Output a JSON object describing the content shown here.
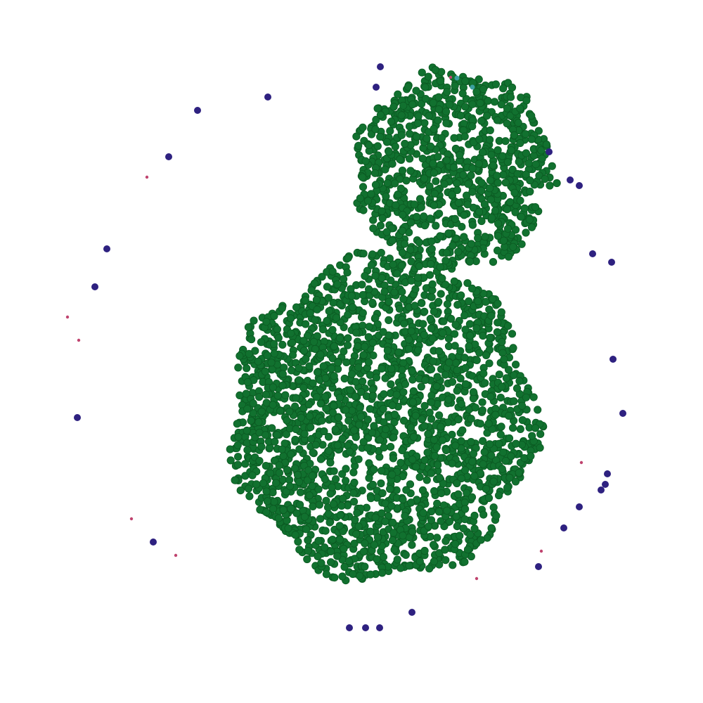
{
  "diagram": {
    "type": "network-graph",
    "background_color": "#ffffff",
    "colors": {
      "cluster": "#11712f",
      "cluster_outline": "#0b5a22",
      "isolate": "#2e2180",
      "minor": "#c0446f",
      "accent": "#3aa0a0"
    },
    "clusters": [
      {
        "name": "large-cluster",
        "node_count": 2200
      },
      {
        "name": "small-cluster",
        "node_count": 900
      }
    ],
    "isolate_count": 30,
    "minor_node_count": 10,
    "accent_node_count": 2
  }
}
